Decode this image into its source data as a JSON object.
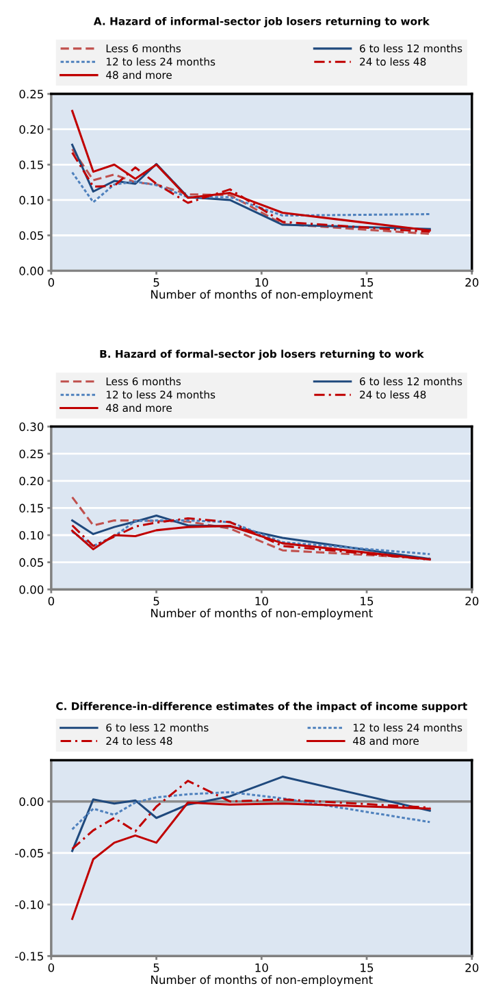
{
  "chart_data": [
    {
      "type": "line",
      "title": "A. Hazard of informal-sector job losers returning to work",
      "xlabel": "Number of months of non-employment",
      "x": [
        1,
        2,
        3,
        4,
        5,
        6.5,
        8.5,
        11,
        18
      ],
      "xlim": [
        0,
        20
      ],
      "xticks": [
        0,
        5,
        10,
        15,
        20
      ],
      "ylim": [
        0,
        0.25
      ],
      "yticks": [
        {
          "value": 0,
          "label": "0.00"
        },
        {
          "value": 0.05,
          "label": "0.05"
        },
        {
          "value": 0.1,
          "label": "0.10"
        },
        {
          "value": 0.15,
          "label": "0.15"
        },
        {
          "value": 0.2,
          "label": "0.20"
        },
        {
          "value": 0.25,
          "label": "0.25"
        }
      ],
      "grid": "y",
      "legend": "top",
      "marker": "none",
      "series": [
        {
          "name": "Less 6 months",
          "color": "#c0504d",
          "line_style": "dashed",
          "values": [
            0.172,
            0.128,
            0.136,
            0.125,
            0.122,
            0.108,
            0.107,
            0.066,
            0.052
          ]
        },
        {
          "name": "6 to less 12 months",
          "color": "#1f497d",
          "line_style": "solid",
          "values": [
            0.178,
            0.112,
            0.127,
            0.123,
            0.151,
            0.104,
            0.1,
            0.065,
            0.059
          ]
        },
        {
          "name": "12 to less 24 months",
          "color": "#4f81bd",
          "line_style": "dotted",
          "values": [
            0.139,
            0.097,
            0.122,
            0.126,
            0.121,
            0.104,
            0.104,
            0.078,
            0.08
          ]
        },
        {
          "name": "24 to less 48",
          "color": "#c00000",
          "line_style": "dashdot",
          "values": [
            0.167,
            0.119,
            0.12,
            0.146,
            0.123,
            0.096,
            0.115,
            0.069,
            0.055
          ]
        },
        {
          "name": "48 and more",
          "color": "#c00000",
          "line_style": "solid",
          "values": [
            0.226,
            0.14,
            0.15,
            0.13,
            0.15,
            0.103,
            0.11,
            0.082,
            0.057
          ]
        }
      ]
    },
    {
      "type": "line",
      "title": "B. Hazard of formal-sector job losers returning to work",
      "xlabel": "Number of months of non-employment",
      "x": [
        1,
        2,
        3,
        4,
        5,
        6.5,
        8.5,
        11,
        18
      ],
      "xlim": [
        0,
        20
      ],
      "xticks": [
        0,
        5,
        10,
        15,
        20
      ],
      "ylim": [
        0,
        0.3
      ],
      "yticks": [
        {
          "value": 0,
          "label": "0.00"
        },
        {
          "value": 0.05,
          "label": "0.05"
        },
        {
          "value": 0.1,
          "label": "0.10"
        },
        {
          "value": 0.15,
          "label": "0.15"
        },
        {
          "value": 0.2,
          "label": "0.20"
        },
        {
          "value": 0.25,
          "label": "0.25"
        },
        {
          "value": 0.3,
          "label": "0.30"
        }
      ],
      "grid": "y",
      "legend": "top",
      "marker": "none",
      "series": [
        {
          "name": "Less 6 months",
          "color": "#c0504d",
          "line_style": "dashed",
          "values": [
            0.17,
            0.118,
            0.127,
            0.127,
            0.126,
            0.125,
            0.112,
            0.072,
            0.057
          ]
        },
        {
          "name": "6 to less 12 months",
          "color": "#1f497d",
          "line_style": "solid",
          "values": [
            0.127,
            0.102,
            0.115,
            0.125,
            0.136,
            0.118,
            0.116,
            0.095,
            0.056
          ]
        },
        {
          "name": "12 to less 24 months",
          "color": "#4f81bd",
          "line_style": "dotted",
          "values": [
            0.106,
            0.08,
            0.098,
            0.126,
            0.127,
            0.127,
            0.124,
            0.087,
            0.065
          ]
        },
        {
          "name": "24 to less 48",
          "color": "#c00000",
          "line_style": "dashdot",
          "values": [
            0.118,
            0.08,
            0.097,
            0.116,
            0.123,
            0.131,
            0.124,
            0.08,
            0.055
          ]
        },
        {
          "name": "48 and more",
          "color": "#c00000",
          "line_style": "solid",
          "values": [
            0.108,
            0.074,
            0.1,
            0.098,
            0.109,
            0.115,
            0.117,
            0.085,
            0.055
          ]
        }
      ]
    },
    {
      "type": "line",
      "title": "C. Difference-in-difference estimates of the impact of income support",
      "xlabel": "Number of months of non-employment",
      "x": [
        1,
        2,
        3,
        4,
        5,
        6.5,
        8.5,
        11,
        18
      ],
      "xlim": [
        0,
        20
      ],
      "xticks": [
        0,
        5,
        10,
        15,
        20
      ],
      "ylim": [
        -0.15,
        0.04
      ],
      "yticks": [
        {
          "value": -0.15,
          "label": "-0.15"
        },
        {
          "value": -0.1,
          "label": "-0.10"
        },
        {
          "value": -0.05,
          "label": "-0.05"
        },
        {
          "value": 0,
          "label": "0.00"
        }
      ],
      "grid": "y",
      "legend": "top",
      "marker": "none",
      "ref_lines": [
        {
          "axis": "y",
          "value": 0,
          "color": "#8c8c8c"
        }
      ],
      "series": [
        {
          "name": "6 to less 12 months",
          "color": "#1f497d",
          "line_style": "solid",
          "values": [
            -0.048,
            0.002,
            -0.002,
            0.001,
            -0.016,
            -0.003,
            0.005,
            0.024,
            -0.009
          ]
        },
        {
          "name": "12 to less 24 months",
          "color": "#4f81bd",
          "line_style": "dotted",
          "values": [
            -0.027,
            -0.007,
            -0.013,
            -0.001,
            0.004,
            0.007,
            0.009,
            0.003,
            -0.02
          ]
        },
        {
          "name": "24 to less 48",
          "color": "#c00000",
          "line_style": "dashdot",
          "values": [
            -0.046,
            -0.028,
            -0.016,
            -0.029,
            -0.005,
            0.02,
            0.0,
            0.002,
            -0.006
          ]
        },
        {
          "name": "48 and more",
          "color": "#c00000",
          "line_style": "solid",
          "values": [
            -0.114,
            -0.056,
            -0.04,
            -0.033,
            -0.04,
            -0.001,
            -0.003,
            -0.002,
            -0.007
          ]
        }
      ]
    }
  ]
}
